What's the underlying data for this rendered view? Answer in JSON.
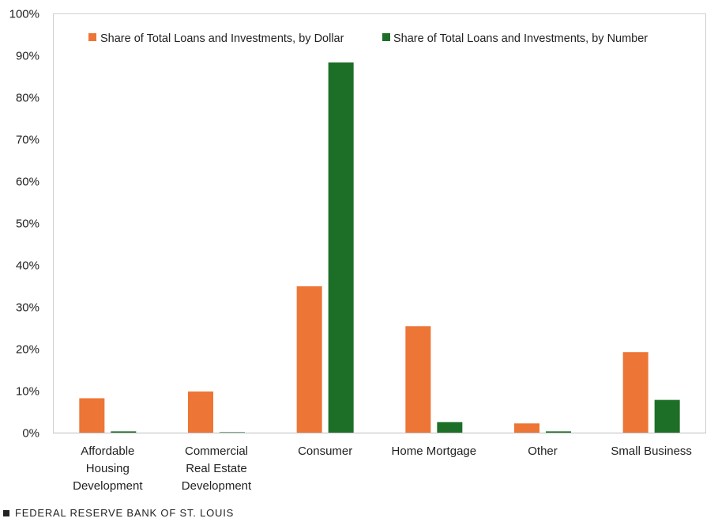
{
  "chart_data": {
    "type": "bar",
    "categories": [
      [
        "Affordable",
        "Housing",
        "Development"
      ],
      [
        "Commercial",
        "Real Estate",
        "Development"
      ],
      [
        "Consumer"
      ],
      [
        "Home Mortgage"
      ],
      [
        "Other"
      ],
      [
        "Small Business"
      ]
    ],
    "series": [
      {
        "name": "Share of Total Loans and Investments, by Dollar",
        "color": "#ED7535",
        "values": [
          8.3,
          9.9,
          35.0,
          25.5,
          2.3,
          19.3
        ]
      },
      {
        "name": "Share of Total Loans and Investments, by Number",
        "color": "#1D6E27",
        "values": [
          0.4,
          0.2,
          88.4,
          2.6,
          0.4,
          7.9
        ]
      }
    ],
    "ylim": [
      0,
      100
    ],
    "yticks": [
      0,
      10,
      20,
      30,
      40,
      50,
      60,
      70,
      80,
      90,
      100
    ],
    "ytick_labels": [
      "0%",
      "10%",
      "20%",
      "30%",
      "40%",
      "50%",
      "60%",
      "70%",
      "80%",
      "90%",
      "100%"
    ],
    "grid": false,
    "legend_position": "top-center"
  },
  "footer": {
    "source": "FEDERAL RESERVE BANK OF ST. LOUIS"
  }
}
